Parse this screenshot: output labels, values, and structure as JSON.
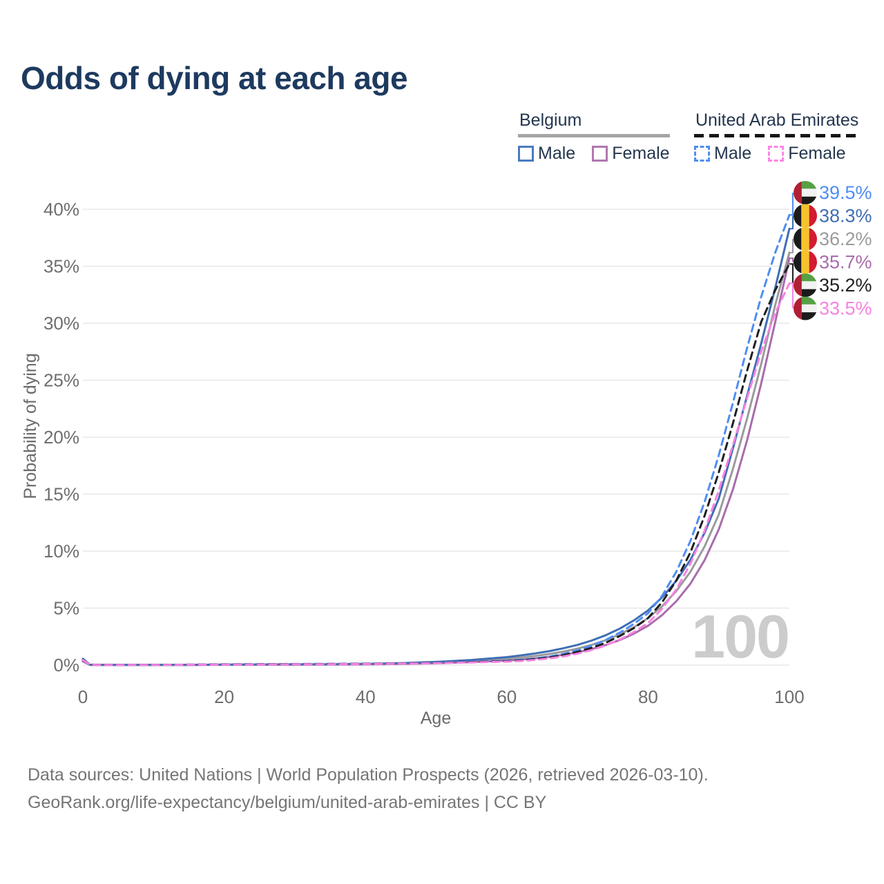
{
  "title": "Odds of dying at each age",
  "legend": {
    "groups": [
      {
        "country": "Belgium",
        "underline_color": "#a6a6a6",
        "underline_style": "solid",
        "items": [
          {
            "label": "Male",
            "color": "#4a7ac2"
          },
          {
            "label": "Female",
            "color": "#b277ae"
          }
        ]
      },
      {
        "country": "United Arab Emirates",
        "underline_color": "#151515",
        "underline_style": "dashed",
        "items": [
          {
            "label": "Male",
            "color": "#4f8df2"
          },
          {
            "label": "Female",
            "color": "#fb86e6"
          }
        ]
      }
    ]
  },
  "chart_data": {
    "type": "line",
    "title": "Odds of dying at each age",
    "xlabel": "Age",
    "ylabel": "Probability of dying",
    "xlim": [
      0,
      100
    ],
    "ylim": [
      0,
      42
    ],
    "xticks": [
      0,
      20,
      40,
      60,
      80,
      100
    ],
    "yticks": [
      0,
      5,
      10,
      15,
      20,
      25,
      30,
      35,
      40
    ],
    "ytick_suffix": "%",
    "grid": true,
    "legend_position": "top-right",
    "watermark": "100",
    "ages": [
      0,
      1,
      2,
      5,
      10,
      15,
      20,
      25,
      30,
      35,
      40,
      45,
      50,
      55,
      60,
      62,
      64,
      66,
      68,
      70,
      72,
      74,
      76,
      78,
      80,
      82,
      84,
      86,
      88,
      90,
      92,
      94,
      96,
      98,
      100
    ],
    "series": [
      {
        "name": "uae-male",
        "country": "United Arab Emirates",
        "sex": "male",
        "color": "#4f8df2",
        "dash": true,
        "flag": "ae",
        "end_label": "39.5%",
        "values": [
          0.55,
          0.05,
          0.03,
          0.02,
          0.02,
          0.04,
          0.07,
          0.09,
          0.1,
          0.11,
          0.13,
          0.16,
          0.21,
          0.29,
          0.38,
          0.46,
          0.58,
          0.74,
          0.98,
          1.3,
          1.7,
          2.2,
          2.85,
          3.62,
          4.55,
          6.1,
          8.2,
          10.9,
          14.3,
          18.4,
          23.0,
          27.8,
          32.3,
          36.2,
          39.5
        ]
      },
      {
        "name": "belgium-male",
        "country": "Belgium",
        "sex": "male",
        "color": "#3f6eb4",
        "dash": false,
        "flag": "be",
        "end_label": "38.3%",
        "values": [
          0.4,
          0.03,
          0.02,
          0.01,
          0.01,
          0.02,
          0.05,
          0.06,
          0.07,
          0.08,
          0.11,
          0.17,
          0.28,
          0.45,
          0.7,
          0.85,
          1.02,
          1.22,
          1.47,
          1.77,
          2.15,
          2.62,
          3.2,
          3.92,
          4.8,
          5.95,
          7.4,
          9.25,
          11.6,
          14.6,
          19.0,
          23.6,
          28.2,
          33.1,
          38.3
        ]
      },
      {
        "name": "belgium-both",
        "country": "Belgium",
        "sex": "both",
        "color": "#9b9b9b",
        "dash": false,
        "flag": "be",
        "end_label": "36.2%",
        "values": [
          0.36,
          0.025,
          0.018,
          0.01,
          0.01,
          0.018,
          0.038,
          0.045,
          0.052,
          0.063,
          0.085,
          0.135,
          0.22,
          0.355,
          0.55,
          0.66,
          0.8,
          0.97,
          1.18,
          1.44,
          1.77,
          2.18,
          2.7,
          3.33,
          4.12,
          5.17,
          6.5,
          8.2,
          10.4,
          13.2,
          17.2,
          21.6,
          26.4,
          31.6,
          36.2
        ]
      },
      {
        "name": "belgium-female",
        "country": "Belgium",
        "sex": "female",
        "color": "#a96cab",
        "dash": false,
        "flag": "be",
        "end_label": "35.7%",
        "values": [
          0.32,
          0.02,
          0.015,
          0.01,
          0.01,
          0.015,
          0.025,
          0.03,
          0.035,
          0.045,
          0.06,
          0.1,
          0.16,
          0.26,
          0.4,
          0.48,
          0.59,
          0.73,
          0.9,
          1.12,
          1.4,
          1.76,
          2.2,
          2.76,
          3.45,
          4.4,
          5.6,
          7.15,
          9.2,
          11.9,
          15.4,
          19.7,
          24.7,
          30.1,
          35.7
        ]
      },
      {
        "name": "uae-both",
        "country": "United Arab Emirates",
        "sex": "both",
        "color": "#1f1f1f",
        "dash": true,
        "flag": "ae",
        "end_label": "35.2%",
        "values": [
          0.5,
          0.045,
          0.025,
          0.018,
          0.018,
          0.035,
          0.06,
          0.075,
          0.085,
          0.095,
          0.115,
          0.145,
          0.19,
          0.26,
          0.34,
          0.41,
          0.52,
          0.66,
          0.87,
          1.15,
          1.51,
          1.96,
          2.55,
          3.24,
          4.13,
          5.53,
          7.43,
          9.9,
          13.1,
          16.9,
          21.2,
          25.8,
          30.1,
          32.9,
          35.2
        ]
      },
      {
        "name": "uae-female",
        "country": "United Arab Emirates",
        "sex": "female",
        "color": "#f782e2",
        "dash": true,
        "flag": "ae",
        "end_label": "33.5%",
        "values": [
          0.45,
          0.04,
          0.02,
          0.015,
          0.015,
          0.03,
          0.05,
          0.06,
          0.07,
          0.08,
          0.1,
          0.13,
          0.17,
          0.23,
          0.3,
          0.36,
          0.45,
          0.58,
          0.76,
          1.0,
          1.32,
          1.72,
          2.24,
          2.9,
          3.7,
          4.95,
          6.65,
          8.9,
          11.8,
          15.3,
          19.3,
          23.4,
          27.5,
          30.9,
          33.5
        ]
      }
    ],
    "flag_colors": {
      "be": {
        "black": "#1b1b1b",
        "yellow": "#f6c32c",
        "red": "#d21c30"
      },
      "ae": {
        "red": "#b01f33",
        "green": "#58a044",
        "white": "#f2f2f2",
        "black": "#1b1b1b"
      }
    }
  },
  "footer": {
    "line1": "Data sources: United Nations | World Population Prospects (2026, retrieved 2026-03-10).",
    "line2": "GeoRank.org/life-expectancy/belgium/united-arab-emirates | CC BY"
  }
}
